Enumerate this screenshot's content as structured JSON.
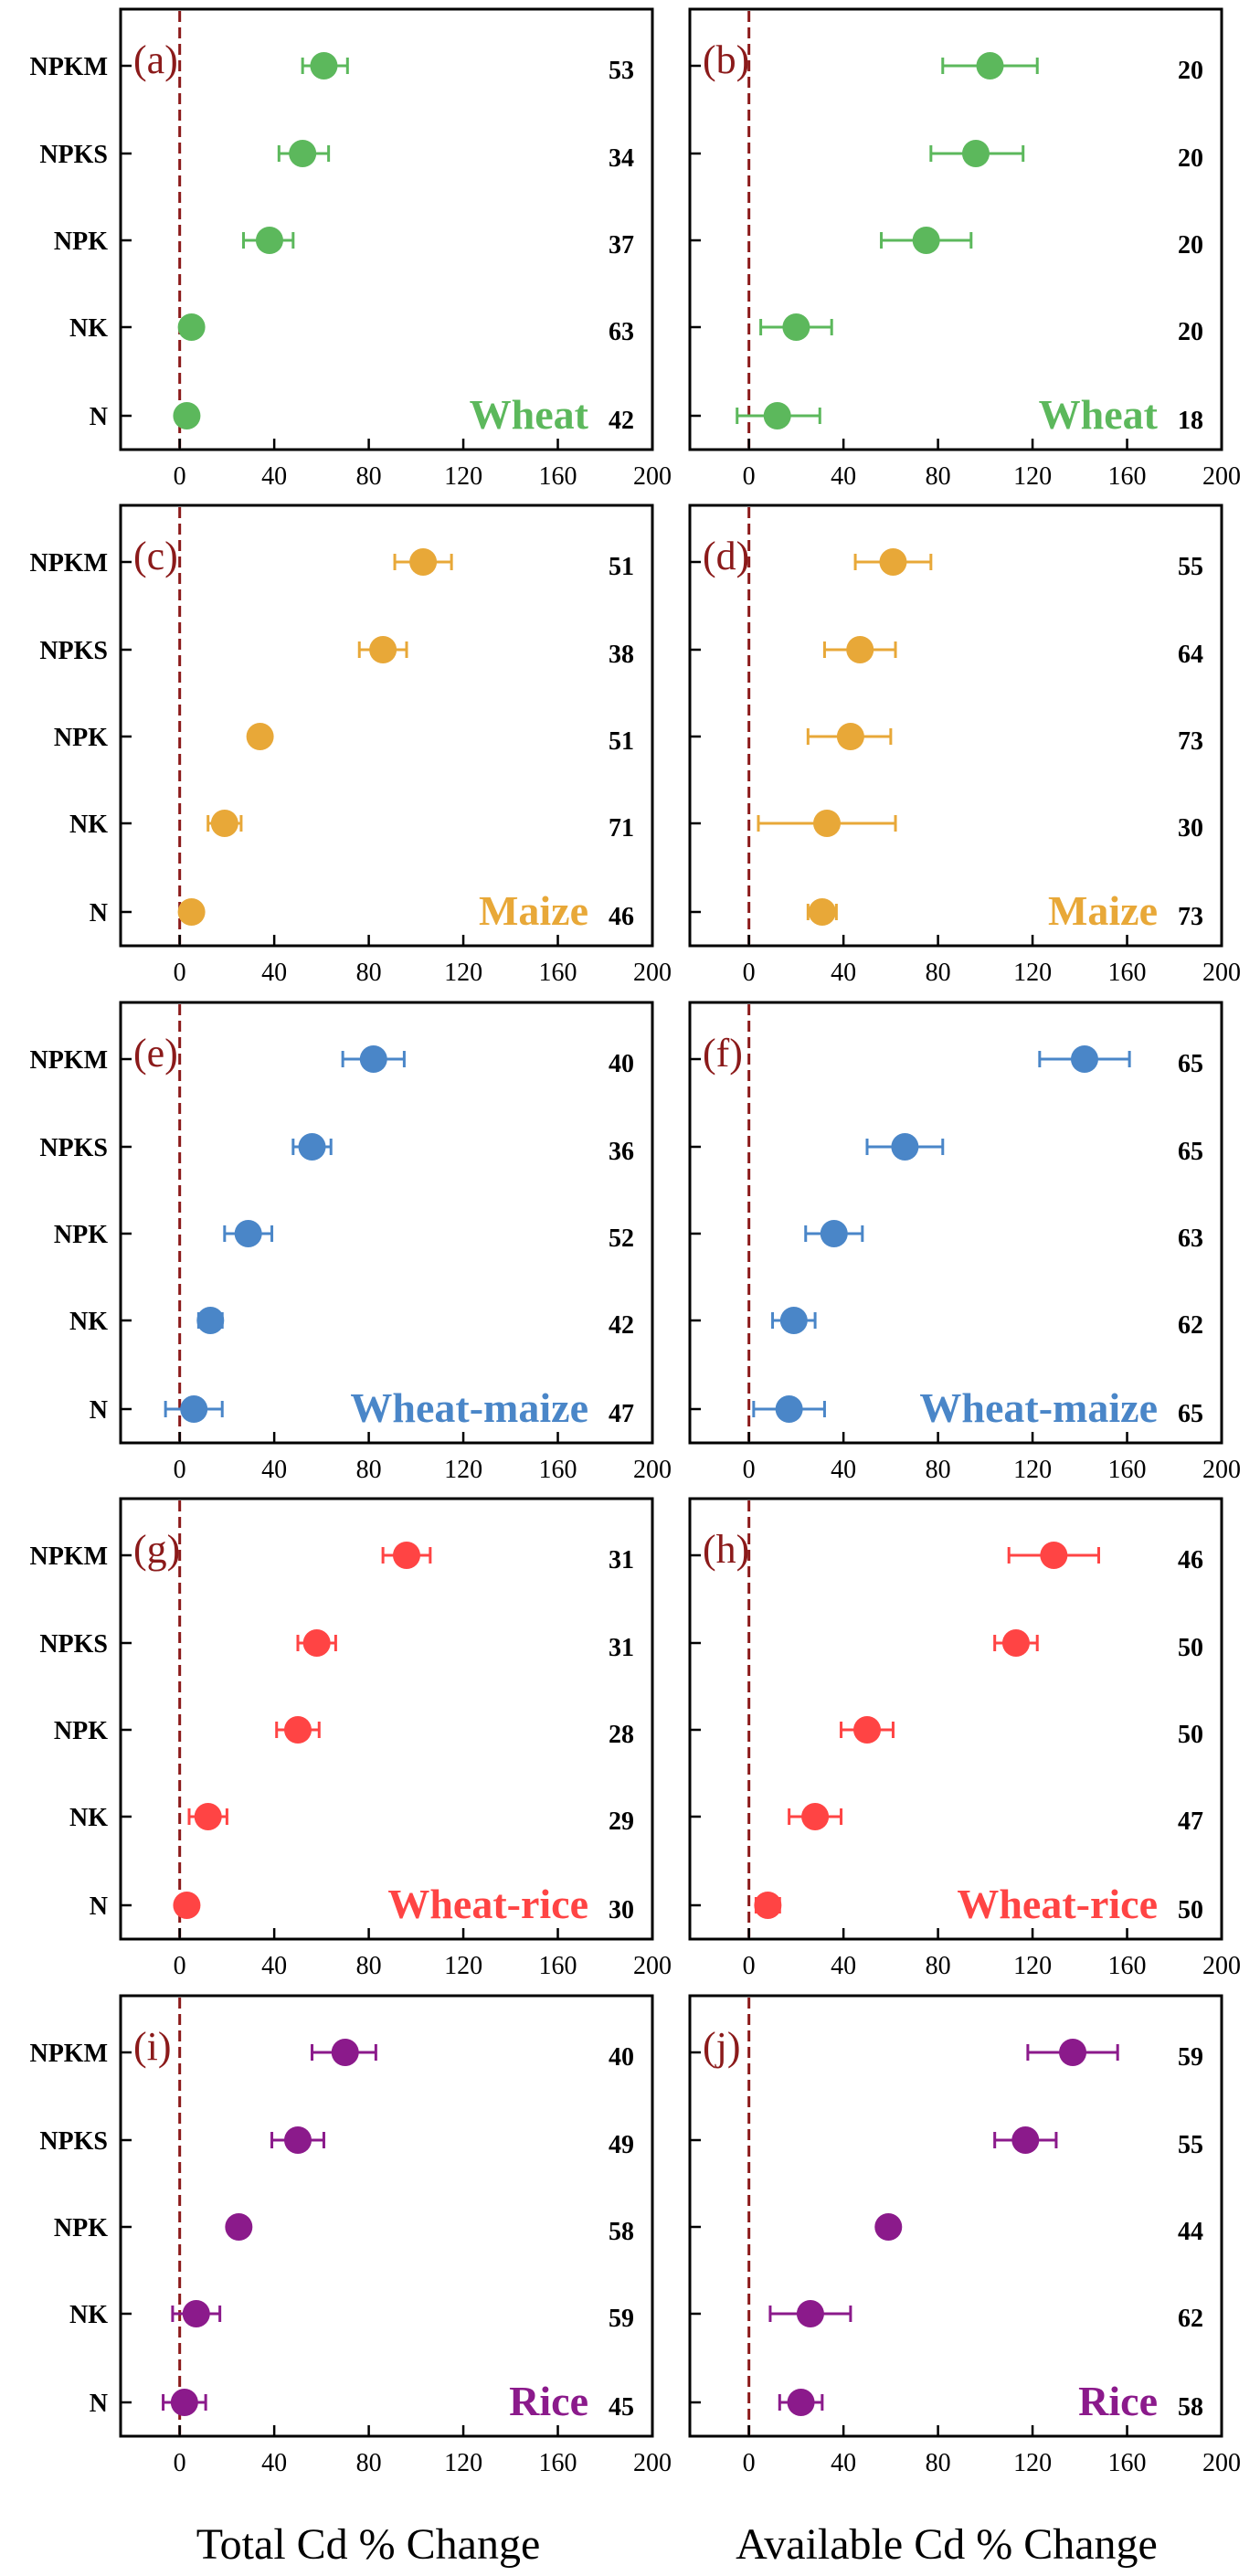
{
  "chart_data": {
    "type": "scatter",
    "subtype": "forest-plot-with-error-bars",
    "categories": [
      "NPKM",
      "NPKS",
      "NPK",
      "NK",
      "N"
    ],
    "xlim": [
      -25,
      200
    ],
    "xticks": [
      0,
      40,
      80,
      120,
      160,
      200
    ],
    "reference_line_x": 0,
    "xlabel_left": "Total Cd % Change",
    "xlabel_right": "Available Cd % Change",
    "panels": [
      {
        "label": "(a)",
        "crop": "Wheat",
        "color": "#5cb85c",
        "measure": "Total Cd",
        "values": [
          61,
          52,
          38,
          5,
          3
        ],
        "lower": [
          52,
          42,
          27,
          2,
          0
        ],
        "upper": [
          71,
          63,
          48,
          8,
          6
        ],
        "n": [
          "53",
          "34",
          "37",
          "63",
          "42"
        ]
      },
      {
        "label": "(b)",
        "crop": "Wheat",
        "color": "#5cb85c",
        "measure": "Available Cd",
        "values": [
          102,
          96,
          75,
          20,
          12
        ],
        "lower": [
          82,
          77,
          56,
          5,
          -5
        ],
        "upper": [
          122,
          116,
          94,
          35,
          30
        ],
        "n": [
          "20",
          "20",
          "20",
          "20",
          "18"
        ]
      },
      {
        "label": "(c)",
        "crop": "Maize",
        "color": "#e8a838",
        "measure": "Total Cd",
        "values": [
          103,
          86,
          34,
          19,
          5
        ],
        "lower": [
          91,
          76,
          30,
          12,
          2
        ],
        "upper": [
          115,
          96,
          38,
          26,
          8
        ],
        "n": [
          "51",
          "38",
          "51",
          "71",
          "46"
        ]
      },
      {
        "label": "(d)",
        "crop": "Maize",
        "color": "#e8a838",
        "measure": "Available Cd",
        "values": [
          61,
          47,
          43,
          33,
          31
        ],
        "lower": [
          45,
          32,
          25,
          4,
          25
        ],
        "upper": [
          77,
          62,
          60,
          62,
          37
        ],
        "n": [
          "55",
          "64",
          "73",
          "30",
          "73"
        ]
      },
      {
        "label": "(e)",
        "crop": "Wheat-maize",
        "color": "#4a86c8",
        "measure": "Total Cd",
        "values": [
          82,
          56,
          29,
          13,
          6
        ],
        "lower": [
          69,
          48,
          19,
          8,
          -6
        ],
        "upper": [
          95,
          64,
          39,
          18,
          18
        ],
        "n": [
          "40",
          "36",
          "52",
          "42",
          "47"
        ]
      },
      {
        "label": "(f)",
        "crop": "Wheat-maize",
        "color": "#4a86c8",
        "measure": "Available Cd",
        "values": [
          142,
          66,
          36,
          19,
          17
        ],
        "lower": [
          123,
          50,
          24,
          10,
          2
        ],
        "upper": [
          161,
          82,
          48,
          28,
          32
        ],
        "n": [
          "65",
          "65",
          "63",
          "62",
          "65"
        ]
      },
      {
        "label": "(g)",
        "crop": "Wheat-rice",
        "color": "#ff4444",
        "measure": "Total Cd",
        "values": [
          96,
          58,
          50,
          12,
          3
        ],
        "lower": [
          86,
          50,
          41,
          4,
          0
        ],
        "upper": [
          106,
          66,
          59,
          20,
          6
        ],
        "n": [
          "31",
          "31",
          "28",
          "29",
          "30"
        ]
      },
      {
        "label": "(h)",
        "crop": "Wheat-rice",
        "color": "#ff4444",
        "measure": "Available Cd",
        "values": [
          129,
          113,
          50,
          28,
          8
        ],
        "lower": [
          110,
          104,
          39,
          17,
          3
        ],
        "upper": [
          148,
          122,
          61,
          39,
          13
        ],
        "n": [
          "46",
          "50",
          "50",
          "47",
          "50"
        ]
      },
      {
        "label": "(i)",
        "crop": "Rice",
        "color": "#8b1a8b",
        "measure": "Total Cd",
        "values": [
          70,
          50,
          25,
          7,
          2
        ],
        "lower": [
          56,
          39,
          21,
          -3,
          -7
        ],
        "upper": [
          83,
          61,
          29,
          17,
          11
        ],
        "n": [
          "40",
          "49",
          "58",
          "59",
          "45"
        ]
      },
      {
        "label": "(j)",
        "crop": "Rice",
        "color": "#8b1a8b",
        "measure": "Available Cd",
        "values": [
          137,
          117,
          59,
          26,
          22
        ],
        "lower": [
          118,
          104,
          55,
          9,
          13
        ],
        "upper": [
          156,
          130,
          63,
          43,
          31
        ],
        "n": [
          "59",
          "55",
          "44",
          "62",
          "58"
        ]
      }
    ]
  }
}
